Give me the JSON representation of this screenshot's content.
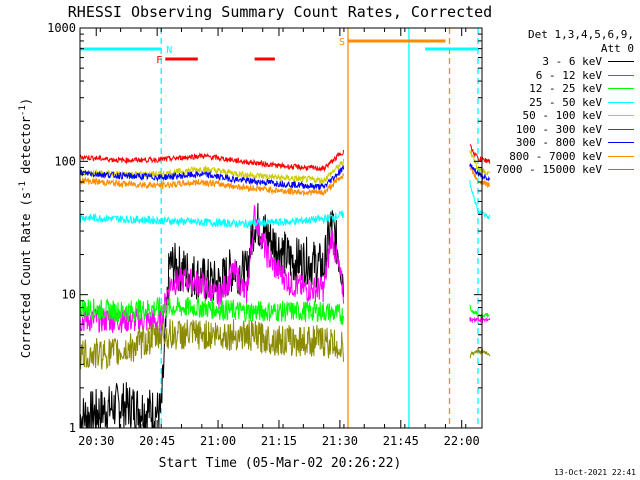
{
  "chart_data": {
    "type": "line",
    "title": "RHESSI Observing Summary Count Rates, Corrected",
    "xlabel": "Start Time (05-Mar-02 20:26:22)",
    "ylabel_parts": [
      "Corrected Count Rate (s",
      "-1",
      " detector",
      "-1",
      ")"
    ],
    "yscale": "log",
    "ylim": [
      1,
      1000
    ],
    "y_ticks": [
      1,
      10,
      100,
      1000
    ],
    "y_tick_labels": [
      "1",
      "10",
      "100",
      "1000"
    ],
    "xlim_minutes_after_2026": [
      0,
      99
    ],
    "x_tick_labels": [
      "20:30",
      "20:45",
      "21:00",
      "21:15",
      "21:30",
      "21:45",
      "22:00"
    ],
    "x_tick_minutes": [
      4,
      19,
      34,
      49,
      64,
      79,
      94
    ],
    "legend_header": [
      "Det 1,3,4,5,6,9,",
      "Att 0"
    ],
    "series": [
      {
        "name": "3 - 6 keV",
        "color": "#000000",
        "x": [
          0,
          10,
          20,
          22,
          26,
          30,
          34,
          38,
          41,
          43,
          46,
          48,
          52,
          56,
          60,
          62,
          65
        ],
        "y": [
          1.2,
          1.5,
          1.3,
          17,
          15,
          13,
          12,
          16,
          14,
          36,
          28,
          24,
          18,
          18,
          16,
          35,
          13
        ]
      },
      {
        "name": "6 - 12 keV",
        "color": "#ff00ff",
        "x": [
          0,
          10,
          20,
          22,
          26,
          30,
          34,
          38,
          41,
          43,
          46,
          48,
          52,
          56,
          60,
          62,
          65
        ],
        "y": [
          6.5,
          6.5,
          6.3,
          12,
          13,
          12,
          9.5,
          15,
          10,
          40,
          20,
          16,
          12,
          11,
          11,
          28,
          10
        ]
      },
      {
        "name": "12 - 25 keV",
        "color": "#00ff00",
        "x": [
          0,
          10,
          20,
          30,
          40,
          50,
          60,
          65
        ],
        "y": [
          8,
          7.5,
          8,
          8,
          7.5,
          7.5,
          7.5,
          7
        ]
      },
      {
        "name": "25 - 50 keV",
        "color": "#00ffff",
        "x": [
          0,
          10,
          20,
          30,
          40,
          50,
          60,
          65
        ],
        "y": [
          38,
          37,
          36,
          35,
          34,
          35,
          37,
          40
        ]
      },
      {
        "name": "50 - 100 keV",
        "color": "#cccc00",
        "x": [
          0,
          10,
          20,
          30,
          40,
          50,
          60,
          65
        ],
        "y": [
          82,
          80,
          80,
          88,
          80,
          75,
          72,
          100
        ]
      },
      {
        "name": "100 - 300 keV",
        "color": "#ff0000",
        "x": [
          0,
          10,
          20,
          30,
          40,
          50,
          60,
          65
        ],
        "y": [
          108,
          102,
          103,
          110,
          100,
          92,
          88,
          120
        ]
      },
      {
        "name": "300 - 800 keV",
        "color": "#0000ff",
        "x": [
          0,
          10,
          20,
          30,
          40,
          50,
          60,
          65
        ],
        "y": [
          82,
          78,
          76,
          80,
          72,
          68,
          64,
          90
        ]
      },
      {
        "name": "800 - 7000 keV",
        "color": "#ff8c00",
        "x": [
          0,
          10,
          20,
          30,
          40,
          50,
          60,
          65
        ],
        "y": [
          72,
          68,
          66,
          70,
          64,
          60,
          58,
          80
        ]
      },
      {
        "name": "7000 - 15000 keV",
        "color": "#8b8b00",
        "x": [
          0,
          10,
          20,
          30,
          40,
          50,
          60,
          65
        ],
        "y": [
          3.5,
          3.7,
          5,
          5,
          5,
          4.5,
          4.5,
          4
        ]
      }
    ],
    "after_gap_series": {
      "x": [
        96,
        98,
        101
      ],
      "curves": [
        {
          "color": "#ff0000",
          "y": [
            130,
            105,
            100
          ]
        },
        {
          "color": "#cccc00",
          "y": [
            120,
            88,
            80
          ]
        },
        {
          "color": "#0000ff",
          "y": [
            95,
            80,
            74
          ]
        },
        {
          "color": "#ff8c00",
          "y": [
            90,
            72,
            66
          ]
        },
        {
          "color": "#00ffff",
          "y": [
            70,
            42,
            38
          ]
        },
        {
          "color": "#00ff00",
          "y": [
            8,
            7,
            7
          ]
        },
        {
          "color": "#ff00ff",
          "y": [
            6.5,
            6.5,
            6.5
          ]
        },
        {
          "color": "#8b8b00",
          "y": [
            3.5,
            3.8,
            3.6
          ]
        }
      ]
    },
    "annotations": {
      "night_bars": [
        {
          "x0": 0,
          "x1": 20,
          "label": "N",
          "color": "#00ffff"
        },
        {
          "x0": 85,
          "x1": 98,
          "label": "",
          "color": "#00ffff"
        }
      ],
      "flare_bars": [
        {
          "x0": 21,
          "x1": 29,
          "label": "F",
          "color": "#ff0000"
        },
        {
          "x0": 43,
          "x1": 48,
          "label": "",
          "color": "#ff0000"
        }
      ],
      "saa_bars": [
        {
          "x0": 66,
          "x1": 90,
          "label": "S",
          "color": "#ff8c00"
        }
      ],
      "vlines": [
        {
          "x": 20,
          "color": "#00ffff",
          "dash": true
        },
        {
          "x": 66,
          "color": "#ff8c00",
          "dash": false
        },
        {
          "x": 81,
          "color": "#00ffff",
          "dash": false
        },
        {
          "x": 91,
          "color": "#ff8c00",
          "dash": true
        },
        {
          "x": 98,
          "color": "#00ffff",
          "dash": true
        }
      ]
    },
    "grid": false
  },
  "timestamp": "13-Oct-2021 22:41"
}
